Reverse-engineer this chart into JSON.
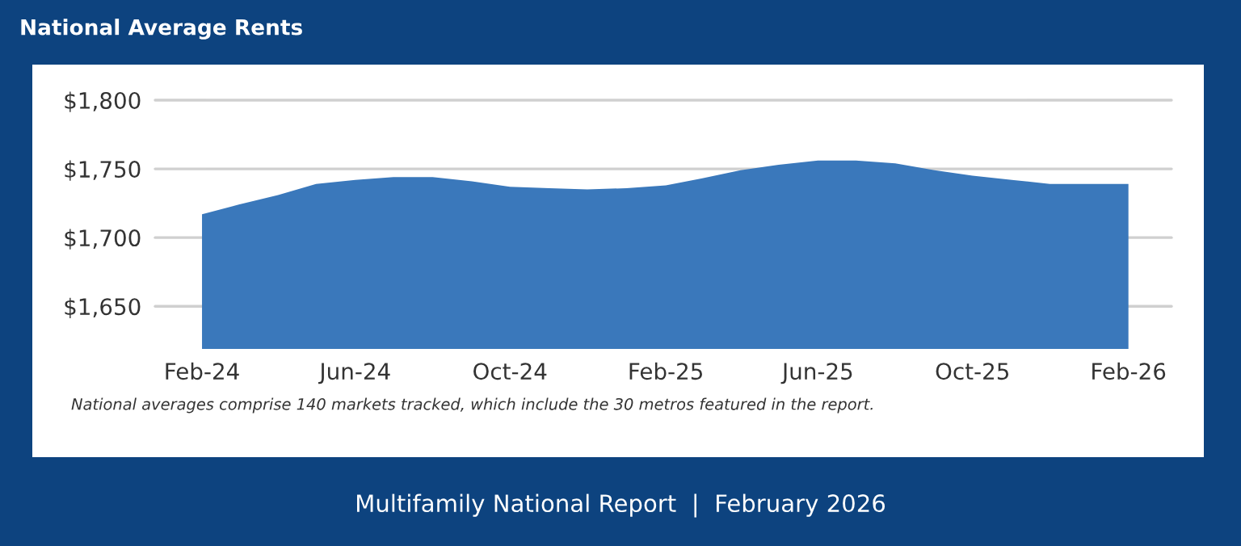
{
  "chart_data": {
    "type": "area",
    "title": "National Average Rents",
    "x": [
      "2024-02",
      "2024-03",
      "2024-04",
      "2024-05",
      "2024-06",
      "2024-07",
      "2024-08",
      "2024-09",
      "2024-10",
      "2024-11",
      "2024-12",
      "2025-01",
      "2025-02",
      "2025-03",
      "2025-04",
      "2025-05",
      "2025-06",
      "2025-07",
      "2025-08",
      "2025-09",
      "2025-10",
      "2025-11",
      "2025-12",
      "2026-01",
      "2026-02"
    ],
    "series": [
      {
        "color": "#3a78bb",
        "values": [
          1717,
          1724,
          1731,
          1739,
          1742,
          1744,
          1744,
          1741,
          1737,
          1736,
          1735,
          1736,
          1738,
          1743,
          1749,
          1753,
          1756,
          1756,
          1754,
          1749,
          1745,
          1742,
          1739,
          1739,
          1739
        ]
      }
    ],
    "xlim": [
      "2023-12-26",
      "2026-03-07"
    ],
    "xticks": [
      {
        "value": "2024-02",
        "label": "Feb-24"
      },
      {
        "value": "2024-06",
        "label": "Jun-24"
      },
      {
        "value": "2024-10",
        "label": "Oct-24"
      },
      {
        "value": "2025-02",
        "label": "Feb-25"
      },
      {
        "value": "2025-06",
        "label": "Jun-25"
      },
      {
        "value": "2025-10",
        "label": "Oct-25"
      },
      {
        "value": "2026-02",
        "label": "Feb-26"
      }
    ],
    "ylim": [
      1619,
      1800
    ],
    "yticks": [
      {
        "value": 1650,
        "label": "$1,650"
      },
      {
        "value": 1700,
        "label": "$1,700"
      },
      {
        "value": 1750,
        "label": "$1,750"
      },
      {
        "value": 1800,
        "label": "$1,800"
      }
    ],
    "grid": "y",
    "annotations": [
      "National averages comprise 140 markets tracked, which include the 30 metros featured in the report.",
      "Multifamily National Report  |  February 2026"
    ]
  }
}
